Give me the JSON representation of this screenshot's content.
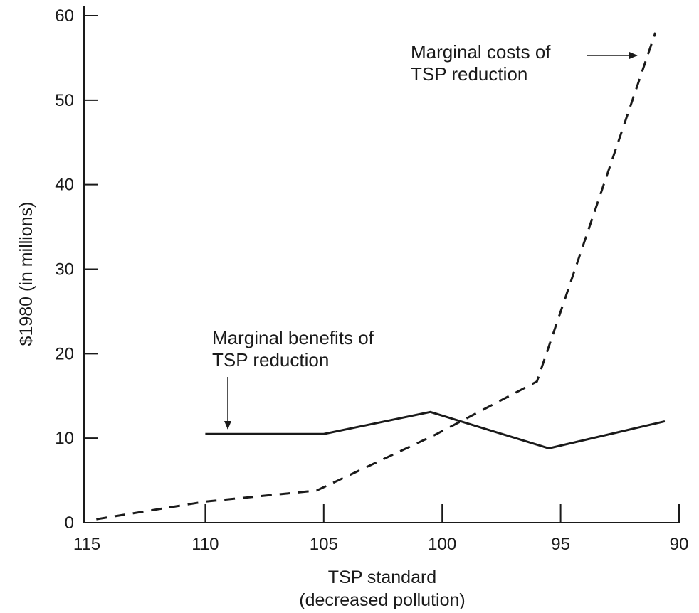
{
  "chart_data": {
    "type": "line",
    "xlabel": [
      "TSP standard",
      "(decreased pollution)"
    ],
    "ylabel": "$1980 (in millions)",
    "x_ticks": [
      115,
      110,
      105,
      100,
      95,
      90
    ],
    "y_ticks": [
      0,
      10,
      20,
      30,
      40,
      50,
      60
    ],
    "xlim": [
      115,
      90
    ],
    "ylim": [
      0,
      60
    ],
    "x_reversed": true,
    "grid": false,
    "series": [
      {
        "name": "Marginal benefits of TSP reduction",
        "style": "solid",
        "color": "#1a1a1a",
        "points": [
          [
            110,
            10.5
          ],
          [
            105,
            10.5
          ],
          [
            100.5,
            13.1
          ],
          [
            95.5,
            8.8
          ],
          [
            90.6,
            12.0
          ]
        ]
      },
      {
        "name": "Marginal costs of TSP reduction",
        "style": "dashed",
        "color": "#1a1a1a",
        "points": [
          [
            114.6,
            0.4
          ],
          [
            110,
            2.5
          ],
          [
            105.3,
            3.8
          ],
          [
            100.3,
            10.4
          ],
          [
            96,
            16.7
          ],
          [
            91,
            58.0
          ]
        ]
      }
    ],
    "annotations": [
      {
        "id": "costs",
        "lines": [
          "Marginal costs of",
          "TSP reduction"
        ]
      },
      {
        "id": "benefits",
        "lines": [
          "Marginal benefits of",
          "TSP reduction"
        ]
      }
    ]
  }
}
